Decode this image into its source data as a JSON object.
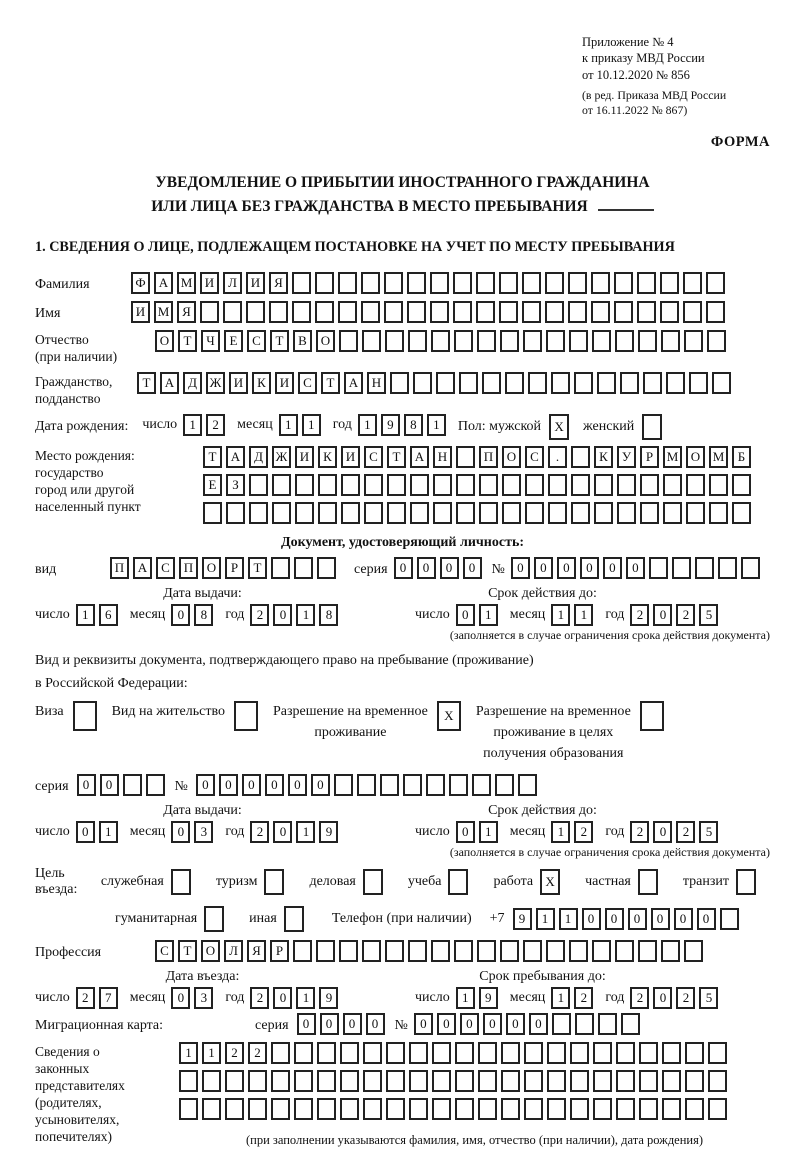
{
  "header": {
    "annex_lines": [
      "Приложение № 4",
      "к приказу МВД России",
      "от 10.12.2020 № 856"
    ],
    "annex_small_lines": [
      "(в ред. Приказа МВД России",
      "от 16.11.2022 № 867)"
    ],
    "forma": "ФОРМА",
    "title_line1": "УВЕДОМЛЕНИЕ О ПРИБЫТИИ ИНОСТРАННОГО ГРАЖДАНИНА",
    "title_line2": "ИЛИ ЛИЦА БЕЗ ГРАЖДАНСТВА В МЕСТО ПРЕБЫВАНИЯ",
    "section1": "1. СВЕДЕНИЯ О ЛИЦЕ, ПОДЛЕЖАЩЕМ ПОСТАНОВКЕ НА УЧЕТ ПО МЕСТУ ПРЕБЫВАНИЯ"
  },
  "labels": {
    "day": "число",
    "month": "месяц",
    "year": "год",
    "series": "серия",
    "no": "№"
  },
  "person": {
    "surname_label": "Фамилия",
    "surname": {
      "chars": "ФАМИЛИЯ",
      "total": 26
    },
    "name_label": "Имя",
    "name": {
      "chars": "ИМЯ",
      "total": 26
    },
    "patronymic_label_1": "Отчество",
    "patronymic_label_2": "(при наличии)",
    "patronymic": {
      "chars": "ОТЧЕСТВО",
      "total": 25
    },
    "citizenship_label_1": "Гражданство,",
    "citizenship_label_2": "подданство",
    "citizenship": {
      "chars": "ТАДЖИКИСТАН",
      "total": 26
    },
    "birthdate_label": "Дата рождения:",
    "birth": {
      "day": {
        "chars": "12",
        "total": 2
      },
      "month": {
        "chars": "11",
        "total": 2
      },
      "year": {
        "chars": "1981",
        "total": 4
      }
    },
    "sex_label": "Пол: мужской",
    "male_box": {
      "chars": "X",
      "total": 1
    },
    "female_label": "женский",
    "female_box": {
      "chars": "",
      "total": 1
    },
    "birthplace_label_lines": [
      "Место рождения:",
      "государство",
      "город или другой",
      "населенный пункт"
    ],
    "birthplace_rows": [
      {
        "chars": "ТАДЖИКИСТАН ПОС. КУРМОМБ",
        "total": 24
      },
      {
        "chars": "ЕЗ",
        "total": 24
      },
      {
        "chars": "",
        "total": 24
      }
    ]
  },
  "document": {
    "header": "Документ, удостоверяющий личность:",
    "kind_label": "вид",
    "kind": {
      "chars": "ПАСПОРТ",
      "total": 10
    },
    "series": {
      "chars": "0000",
      "total": 4
    },
    "number": {
      "chars": "000000",
      "total": 11
    },
    "issue_header": "Дата выдачи:",
    "valid_header": "Срок действия до:",
    "issue": {
      "day": {
        "chars": "16",
        "total": 2
      },
      "month": {
        "chars": "08",
        "total": 2
      },
      "year": {
        "chars": "2018",
        "total": 4
      }
    },
    "valid": {
      "day": {
        "chars": "01",
        "total": 2
      },
      "month": {
        "chars": "11",
        "total": 2
      },
      "year": {
        "chars": "2025",
        "total": 4
      }
    },
    "note": "(заполняется в случае ограничения срока действия документа)"
  },
  "permit": {
    "line1": "Вид и реквизиты документа, подтверждающего право на пребывание (проживание)",
    "line2": "в Российской Федерации:",
    "visa_label": "Виза",
    "visa_box": {
      "chars": "",
      "total": 1
    },
    "residence_label": "Вид на жительство",
    "residence_box": {
      "chars": "",
      "total": 1
    },
    "temp_lines": [
      "Разрешение на временное",
      "проживание"
    ],
    "temp_box": {
      "chars": "X",
      "total": 1
    },
    "edu_lines": [
      "Разрешение на временное",
      "проживание в целях",
      "получения образования"
    ],
    "edu_box": {
      "chars": "",
      "total": 1
    },
    "series": {
      "chars": "00",
      "total": 4
    },
    "number": {
      "chars": "000000",
      "total": 15
    },
    "issue_header": "Дата выдачи:",
    "valid_header": "Срок действия до:",
    "issue": {
      "day": {
        "chars": "01",
        "total": 2
      },
      "month": {
        "chars": "03",
        "total": 2
      },
      "year": {
        "chars": "2019",
        "total": 4
      }
    },
    "valid": {
      "day": {
        "chars": "01",
        "total": 2
      },
      "month": {
        "chars": "12",
        "total": 2
      },
      "year": {
        "chars": "2025",
        "total": 4
      }
    },
    "note": "(заполняется в случае ограничения срока действия документа)"
  },
  "purpose": {
    "label": "Цель въезда:",
    "items": [
      {
        "label": "служебная",
        "box": {
          "chars": "",
          "total": 1
        }
      },
      {
        "label": "туризм",
        "box": {
          "chars": "",
          "total": 1
        }
      },
      {
        "label": "деловая",
        "box": {
          "chars": "",
          "total": 1
        }
      },
      {
        "label": "учеба",
        "box": {
          "chars": "",
          "total": 1
        }
      },
      {
        "label": "работа",
        "box": {
          "chars": "X",
          "total": 1
        }
      },
      {
        "label": "частная",
        "box": {
          "chars": "",
          "total": 1
        }
      },
      {
        "label": "транзит",
        "box": {
          "chars": "",
          "total": 1
        }
      }
    ],
    "items2": [
      {
        "label": "гуманитарная",
        "box": {
          "chars": "",
          "total": 1
        }
      },
      {
        "label": "иная",
        "box": {
          "chars": "",
          "total": 1
        }
      }
    ],
    "phone_label": "Телефон (при наличии)",
    "phone_prefix": "+7",
    "phone": {
      "chars": "911000000",
      "total": 10
    }
  },
  "profession": {
    "label": "Профессия",
    "value": {
      "chars": "СТОЛЯР",
      "total": 24
    }
  },
  "entry": {
    "date_header": "Дата въезда:",
    "stay_header": "Срок пребывания до:",
    "date": {
      "day": {
        "chars": "27",
        "total": 2
      },
      "month": {
        "chars": "03",
        "total": 2
      },
      "year": {
        "chars": "2019",
        "total": 4
      }
    },
    "stay": {
      "day": {
        "chars": "19",
        "total": 2
      },
      "month": {
        "chars": "12",
        "total": 2
      },
      "year": {
        "chars": "2025",
        "total": 4
      }
    }
  },
  "migration": {
    "label": "Миграционная карта:",
    "series": {
      "chars": "0000",
      "total": 4
    },
    "number": {
      "chars": "000000",
      "total": 10
    }
  },
  "representatives": {
    "label_lines": [
      "Сведения о",
      "законных",
      "представителях",
      "(родителях,",
      "усыновителях,",
      "попечителях)"
    ],
    "rows": [
      {
        "chars": "1122",
        "total": 24
      },
      {
        "chars": "",
        "total": 24
      },
      {
        "chars": "",
        "total": 24
      }
    ],
    "note": "(при заполнении указываются фамилия, имя, отчество (при наличии), дата рождения)"
  }
}
